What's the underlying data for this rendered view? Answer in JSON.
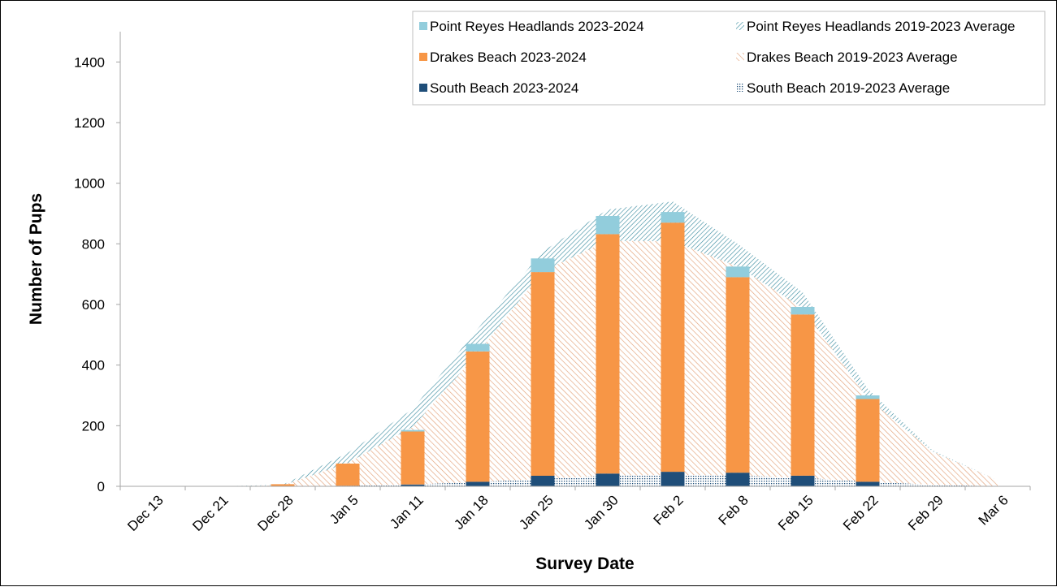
{
  "chart_data": {
    "type": "bar",
    "xlabel": "Survey Date",
    "ylabel": "Number of  Pups",
    "ylim": [
      0,
      1500
    ],
    "yticks": [
      0,
      200,
      400,
      600,
      800,
      1000,
      1200,
      1400
    ],
    "categories": [
      "Dec 13",
      "Dec 21",
      "Dec 28",
      "Jan 5",
      "Jan 11",
      "Jan 18",
      "Jan 25",
      "Jan 30",
      "Feb 2",
      "Feb 8",
      "Feb 15",
      "Feb 22",
      "Feb 29",
      "Mar 6"
    ],
    "stacked_bars": [
      {
        "name": "South Beach 2023-2024",
        "color": "#1f4e79",
        "values": [
          0,
          0,
          0,
          2,
          6,
          15,
          35,
          42,
          48,
          45,
          35,
          15,
          null,
          null
        ]
      },
      {
        "name": "Drakes Beach 2023-2024",
        "color": "#f79646",
        "values": [
          0,
          0,
          7,
          73,
          175,
          430,
          672,
          790,
          822,
          645,
          532,
          273,
          null,
          null
        ]
      },
      {
        "name": "Point Reyes Headlands 2023-2024",
        "color": "#92cddc",
        "values": [
          0,
          0,
          0,
          0,
          5,
          25,
          45,
          60,
          35,
          35,
          25,
          12,
          null,
          null
        ]
      }
    ],
    "stacked_areas": [
      {
        "name": "South Beach 2019-2023 Average",
        "color": "#1f4e79",
        "pattern": "dots",
        "values": [
          0,
          0,
          0,
          2,
          6,
          14,
          25,
          35,
          38,
          35,
          28,
          15,
          5,
          0
        ]
      },
      {
        "name": "Drakes Beach 2019-2023 Average",
        "color": "#e2a178",
        "pattern": "diagonal",
        "values": [
          0,
          0,
          3,
          75,
          190,
          425,
          685,
          775,
          770,
          690,
          560,
          275,
          110,
          20
        ]
      },
      {
        "name": "Point Reyes Headlands 2019-2023 Average",
        "color": "#31869b",
        "pattern": "diagonal-reverse",
        "values": [
          0,
          0,
          2,
          33,
          59,
          81,
          65,
          103,
          132,
          75,
          52,
          32,
          3,
          0
        ]
      }
    ],
    "legend": {
      "position": "top-right",
      "items": [
        {
          "label": "Point Reyes Headlands 2023-2024",
          "color": "#92cddc",
          "swatch": "solid"
        },
        {
          "label": "Point Reyes Headlands 2019-2023 Average",
          "color": "#31869b",
          "swatch": "diagonal-reverse"
        },
        {
          "label": "Drakes Beach 2023-2024",
          "color": "#f79646",
          "swatch": "solid"
        },
        {
          "label": "Drakes Beach 2019-2023 Average",
          "color": "#e2a178",
          "swatch": "diagonal"
        },
        {
          "label": "South Beach 2023-2024",
          "color": "#1f4e79",
          "swatch": "solid"
        },
        {
          "label": "South Beach 2019-2023 Average",
          "color": "#1f4e79",
          "swatch": "dots"
        }
      ]
    },
    "grid": false
  }
}
